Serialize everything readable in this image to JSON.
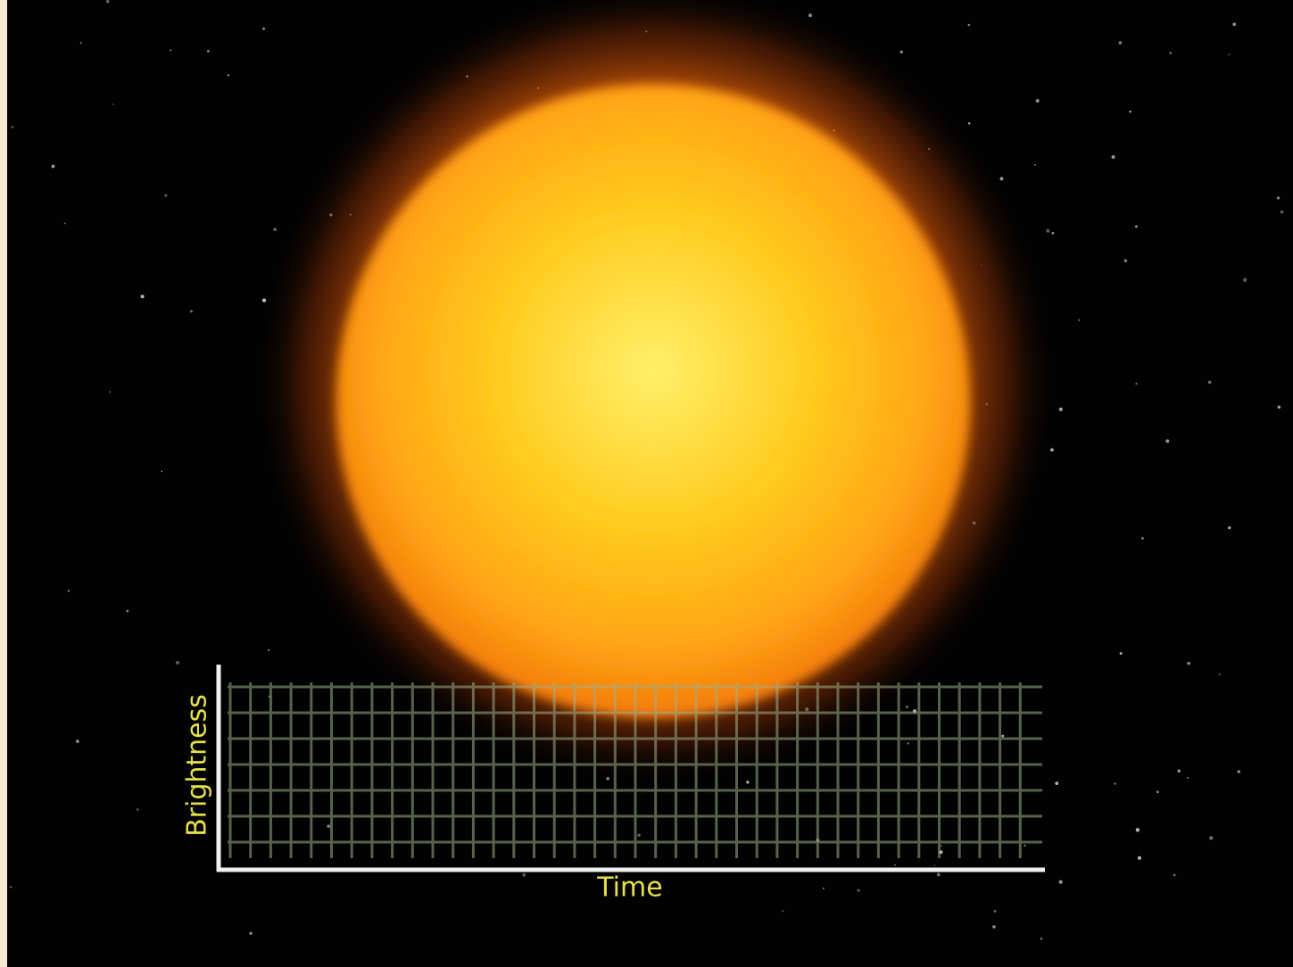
{
  "light_curve": {
    "y_axis_label": "Brightness",
    "x_axis_label": "Time"
  }
}
